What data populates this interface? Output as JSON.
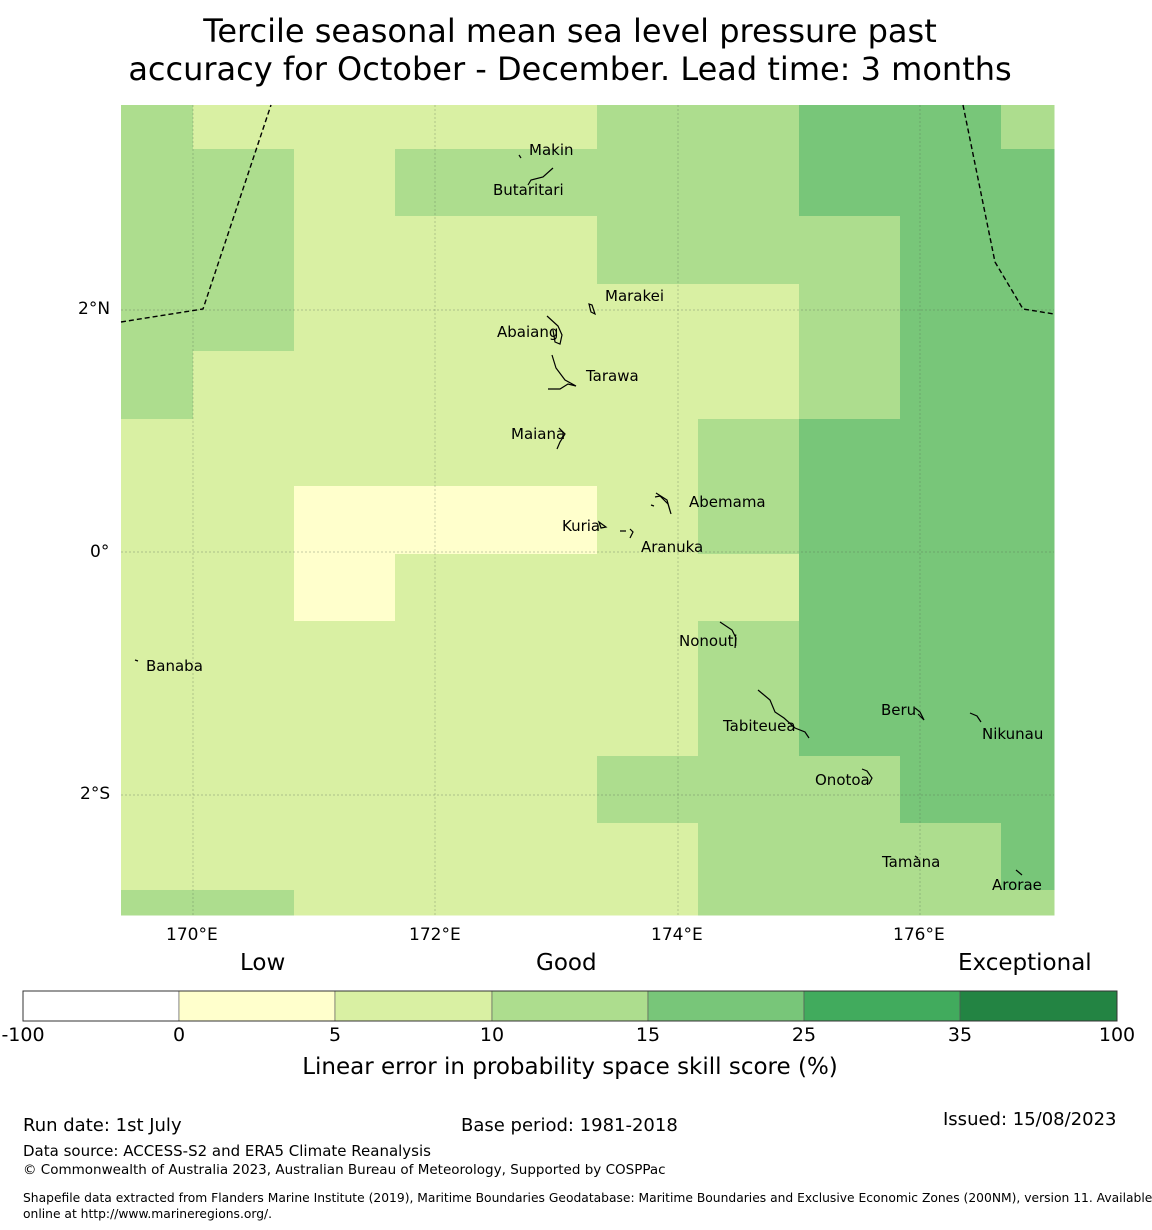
{
  "title": {
    "line1": "Tercile seasonal mean sea level pressure past",
    "line2": "accuracy for October - December. Lead time: 3 months"
  },
  "map": {
    "lon_ticks": [
      "170°E",
      "172°E",
      "174°E",
      "176°E"
    ],
    "lat_ticks": [
      "2°N",
      "0°",
      "2°S"
    ],
    "lon_range": [
      169.4,
      177.1
    ],
    "lat_range": [
      -2.98,
      3.7
    ],
    "islands": [
      {
        "name": "Makin"
      },
      {
        "name": "Butaritari"
      },
      {
        "name": "Marakei"
      },
      {
        "name": "Abaiang"
      },
      {
        "name": "Tarawa"
      },
      {
        "name": "Maiana"
      },
      {
        "name": "Abemama"
      },
      {
        "name": "Kuria"
      },
      {
        "name": "Aranuka"
      },
      {
        "name": "Nonouti"
      },
      {
        "name": "Banaba"
      },
      {
        "name": "Beru"
      },
      {
        "name": "Nikunau"
      },
      {
        "name": "Tabiteuea"
      },
      {
        "name": "Onotoa"
      },
      {
        "name": "Tamana"
      },
      {
        "name": "Arorae"
      }
    ],
    "grid_levels_note_colors": {
      "0": "#ffffff",
      "1": "#ffffcc",
      "2": "#d9f0a3",
      "3": "#addd8e",
      "4": "#78c679",
      "5": "#41ab5d",
      "6": "#238443"
    }
  },
  "legend": {
    "categories": [
      "Low",
      "Good",
      "Exceptional"
    ],
    "ticks": [
      "-100",
      "0",
      "5",
      "10",
      "15",
      "25",
      "35",
      "100"
    ],
    "colors": [
      "#ffffff",
      "#ffffcc",
      "#d9f0a3",
      "#addd8e",
      "#78c679",
      "#41ab5d",
      "#238443"
    ],
    "title": "Linear error in probability space skill score (%)"
  },
  "footer": {
    "run_date": "Run date: 1st July",
    "base_period": "Base period: 1981-2018",
    "issued": "Issued: 15/08/2023",
    "data_source": "Data source: ACCESS-S2 and ERA5 Climate Reanalysis",
    "copyright": "© Commonwealth of Australia 2023, Australian Bureau of Meteorology, Supported by COSPPac",
    "shapefile_line1": "Shapefile data extracted from Flanders Marine Institute (2019), Maritime Boundaries Geodatabase: Maritime Boundaries and Exclusive Economic Zones (200NM), version 11. Available",
    "shapefile_line2": "online at http://www.marineregions.org/."
  }
}
